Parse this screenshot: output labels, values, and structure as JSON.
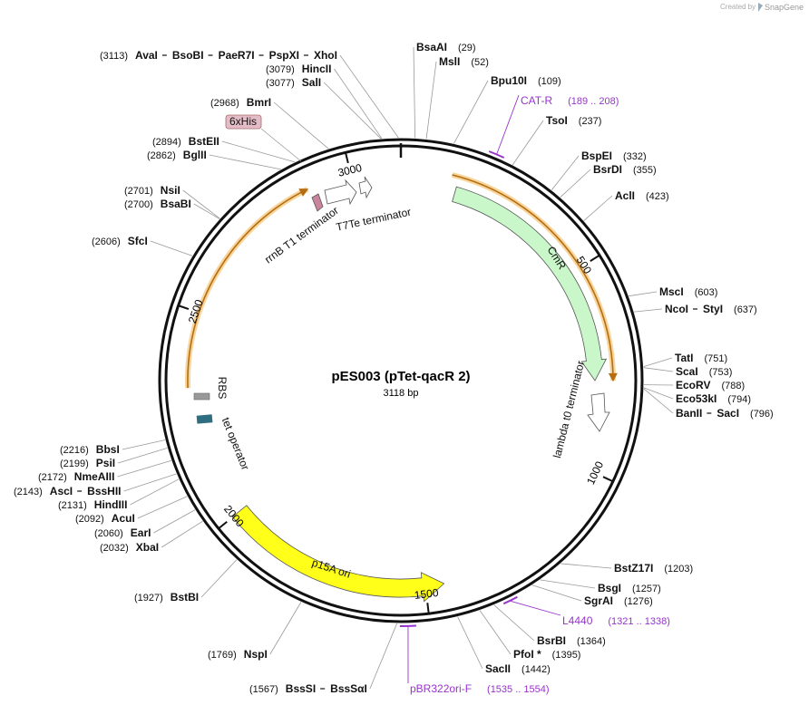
{
  "title": "pES003 (pTet-qacR 2)",
  "subtitle": "3118 bp",
  "brand": {
    "created_by": "Created by",
    "name": "SnapGene"
  },
  "tick_labels": [
    500,
    1000,
    1500,
    2000,
    2500,
    3000
  ],
  "enzymes_left": [
    {
      "position": "(3113)",
      "names": [
        "AvaI",
        "BsoBI",
        "PaeR7I",
        "PspXI",
        "XhoI"
      ]
    },
    {
      "position": "(3079)",
      "names": [
        "HincII"
      ]
    },
    {
      "position": "(3077)",
      "names": [
        "SalI"
      ]
    },
    {
      "position": "(2968)",
      "names": [
        "BmrI"
      ]
    },
    {
      "position": "(2894)",
      "names": [
        "BstEII"
      ]
    },
    {
      "position": "(2862)",
      "names": [
        "BglII"
      ]
    },
    {
      "position": "(2701)",
      "names": [
        "NsiI"
      ]
    },
    {
      "position": "(2700)",
      "names": [
        "BsaBI"
      ]
    },
    {
      "position": "(2606)",
      "names": [
        "SfcI"
      ]
    },
    {
      "position": "(2216)",
      "names": [
        "BbsI"
      ]
    },
    {
      "position": "(2199)",
      "names": [
        "PsiI"
      ]
    },
    {
      "position": "(2172)",
      "names": [
        "NmeAIII"
      ]
    },
    {
      "position": "(2143)",
      "names": [
        "AscI",
        "BssHII"
      ]
    },
    {
      "position": "(2131)",
      "names": [
        "HindIII"
      ]
    },
    {
      "position": "(2092)",
      "names": [
        "AcuI"
      ]
    },
    {
      "position": "(2060)",
      "names": [
        "EarI"
      ]
    },
    {
      "position": "(2032)",
      "names": [
        "XbaI"
      ]
    },
    {
      "position": "(1927)",
      "names": [
        "BstBI"
      ]
    },
    {
      "position": "(1769)",
      "names": [
        "NspI"
      ]
    },
    {
      "position": "(1567)",
      "names": [
        "BssSI",
        "BssSαI"
      ]
    }
  ],
  "enzymes_right": [
    {
      "position": "(29)",
      "names": [
        "BsaAI"
      ]
    },
    {
      "position": "(52)",
      "names": [
        "MslI"
      ]
    },
    {
      "position": "(109)",
      "names": [
        "Bpu10I"
      ]
    },
    {
      "position": "(237)",
      "names": [
        "TsoI"
      ]
    },
    {
      "position": "(332)",
      "names": [
        "BspEI"
      ]
    },
    {
      "position": "(355)",
      "names": [
        "BsrDI"
      ]
    },
    {
      "position": "(423)",
      "names": [
        "AclI"
      ]
    },
    {
      "position": "(603)",
      "names": [
        "MscI"
      ]
    },
    {
      "position": "(637)",
      "names": [
        "NcoI",
        "StyI"
      ]
    },
    {
      "position": "(751)",
      "names": [
        "TatI"
      ]
    },
    {
      "position": "(753)",
      "names": [
        "ScaI"
      ]
    },
    {
      "position": "(788)",
      "names": [
        "EcoRV"
      ]
    },
    {
      "position": "(794)",
      "names": [
        "Eco53kI"
      ]
    },
    {
      "position": "(796)",
      "names": [
        "BanII",
        "SacI"
      ]
    },
    {
      "position": "(1203)",
      "names": [
        "BstZ17I"
      ]
    },
    {
      "position": "(1257)",
      "names": [
        "BsgI"
      ]
    },
    {
      "position": "(1276)",
      "names": [
        "SgrAI"
      ]
    },
    {
      "position": "(1364)",
      "names": [
        "BsrBI"
      ]
    },
    {
      "position": "(1395)",
      "names": [
        "PfoI *"
      ]
    },
    {
      "position": "(1442)",
      "names": [
        "SacII"
      ]
    }
  ],
  "primers": [
    {
      "name": "CAT-R",
      "range": "(189 .. 208)"
    },
    {
      "name": "L4440",
      "range": "(1321 .. 1338)"
    },
    {
      "name": "pBR322ori-F",
      "range": "(1535 .. 1554)"
    }
  ],
  "features": [
    "rrnB T1 terminator",
    "T7Te terminator",
    "CmR",
    "lambda t0 terminator",
    "RBS",
    "tet operator",
    "p15A ori",
    "6xHis"
  ]
}
